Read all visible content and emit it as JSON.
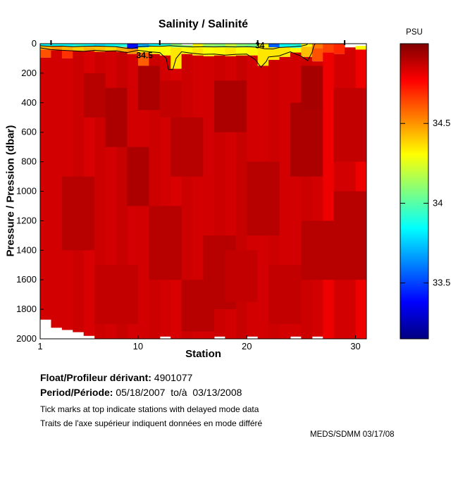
{
  "title": "Salinity / Salinité",
  "axes": {
    "xlabel": "Station",
    "ylabel": "Pressure / Pression (dbar)",
    "xticks": [
      1,
      10,
      20,
      30
    ],
    "yticks": [
      0,
      200,
      400,
      600,
      800,
      1000,
      1200,
      1400,
      1600,
      1800,
      2000
    ],
    "xlim": [
      1,
      31
    ],
    "ylim": [
      0,
      2000
    ]
  },
  "colorbar": {
    "label": "PSU",
    "ticks": [
      34.5,
      34,
      33.5
    ],
    "vmin": 33.15,
    "vmax": 35.0,
    "colormap": "jet"
  },
  "footer": {
    "float_label": "Float/Profileur dérivant:",
    "float_value": " 4901077",
    "period_label": "Period/Période:",
    "period_value": " 05/18/2007  to/à  03/13/2008",
    "note_en": "Tick marks at top indicate stations with delayed mode data",
    "note_fr": "Traits de l'axe supérieur indiquent données en mode différé",
    "credit": "MEDS/SDMM  03/17/08"
  },
  "chart_data": {
    "type": "heatmap",
    "title": "Salinity / Salinité",
    "xlabel": "Station",
    "ylabel": "Pressure / Pression (dbar)",
    "units": "PSU",
    "xlim": [
      1,
      31
    ],
    "ylim": [
      0,
      2000
    ],
    "colorbar": {
      "vmin": 33.15,
      "vmax": 35.0,
      "ticks": [
        34.5,
        34,
        33.5
      ],
      "colormap": "jet"
    },
    "delayed_mode_stations": [
      2,
      12,
      21,
      29
    ],
    "columns": [
      {
        "station": 1,
        "segments": [
          [
            0,
            15,
            33.85
          ],
          [
            15,
            40,
            34.45
          ],
          [
            40,
            95,
            34.62
          ],
          [
            95,
            1870,
            34.85
          ]
        ]
      },
      {
        "station": 2,
        "segments": [
          [
            0,
            15,
            33.85
          ],
          [
            15,
            45,
            34.5
          ],
          [
            45,
            1925,
            34.85
          ]
        ]
      },
      {
        "station": 3,
        "segments": [
          [
            0,
            18,
            33.85
          ],
          [
            18,
            45,
            34.45
          ],
          [
            45,
            100,
            34.68
          ],
          [
            100,
            1940,
            34.85
          ]
        ]
      },
      {
        "station": 4,
        "segments": [
          [
            0,
            18,
            33.9
          ],
          [
            18,
            50,
            34.4
          ],
          [
            50,
            1955,
            34.86
          ]
        ]
      },
      {
        "station": 5,
        "segments": [
          [
            0,
            20,
            33.85
          ],
          [
            20,
            50,
            34.45
          ],
          [
            50,
            1980,
            34.84
          ]
        ]
      },
      {
        "station": 6,
        "segments": [
          [
            0,
            18,
            33.8
          ],
          [
            18,
            55,
            34.42
          ],
          [
            55,
            2000,
            34.86
          ]
        ]
      },
      {
        "station": 7,
        "segments": [
          [
            0,
            18,
            33.85
          ],
          [
            18,
            50,
            34.38
          ],
          [
            50,
            2000,
            34.85
          ]
        ]
      },
      {
        "station": 8,
        "segments": [
          [
            0,
            22,
            33.9
          ],
          [
            22,
            55,
            34.45
          ],
          [
            55,
            2000,
            34.87
          ]
        ]
      },
      {
        "station": 9,
        "segments": [
          [
            0,
            35,
            33.4
          ],
          [
            35,
            70,
            34.5
          ],
          [
            70,
            2000,
            34.85
          ]
        ]
      },
      {
        "station": 10,
        "segments": [
          [
            0,
            25,
            33.7
          ],
          [
            25,
            60,
            34.3
          ],
          [
            60,
            150,
            34.6
          ],
          [
            150,
            2000,
            34.85
          ]
        ]
      },
      {
        "station": 11,
        "segments": [
          [
            0,
            15,
            33.85
          ],
          [
            15,
            70,
            34.3
          ],
          [
            70,
            2000,
            34.86
          ]
        ]
      },
      {
        "station": 12,
        "segments": [
          [
            0,
            18,
            33.9
          ],
          [
            18,
            80,
            34.3
          ],
          [
            80,
            1985,
            34.85
          ]
        ]
      },
      {
        "station": 13,
        "segments": [
          [
            0,
            25,
            34.1
          ],
          [
            25,
            170,
            34.35
          ],
          [
            170,
            2000,
            34.84
          ]
        ]
      },
      {
        "station": 14,
        "segments": [
          [
            10,
            25,
            34.1
          ],
          [
            25,
            70,
            34.3
          ],
          [
            70,
            2000,
            34.86
          ]
        ]
      },
      {
        "station": 15,
        "segments": [
          [
            0,
            30,
            34.3
          ],
          [
            30,
            80,
            34.35
          ],
          [
            80,
            2000,
            34.85
          ]
        ]
      },
      {
        "station": 16,
        "segments": [
          [
            0,
            25,
            34.12
          ],
          [
            25,
            85,
            34.3
          ],
          [
            85,
            2000,
            34.85
          ]
        ]
      },
      {
        "station": 17,
        "segments": [
          [
            0,
            25,
            34.1
          ],
          [
            25,
            80,
            34.32
          ],
          [
            80,
            1985,
            34.86
          ]
        ]
      },
      {
        "station": 18,
        "segments": [
          [
            0,
            28,
            34.2
          ],
          [
            28,
            85,
            34.35
          ],
          [
            85,
            2000,
            34.85
          ]
        ]
      },
      {
        "station": 19,
        "segments": [
          [
            0,
            25,
            34.1
          ],
          [
            25,
            80,
            34.3
          ],
          [
            80,
            2000,
            34.87
          ]
        ]
      },
      {
        "station": 20,
        "segments": [
          [
            0,
            25,
            34.05
          ],
          [
            25,
            80,
            34.32
          ],
          [
            80,
            1985,
            34.85
          ]
        ]
      },
      {
        "station": 21,
        "segments": [
          [
            0,
            22,
            34.3
          ],
          [
            22,
            150,
            34.35
          ],
          [
            150,
            2000,
            34.85
          ]
        ]
      },
      {
        "station": 22,
        "segments": [
          [
            0,
            25,
            33.55
          ],
          [
            25,
            110,
            34.35
          ],
          [
            110,
            2000,
            34.86
          ]
        ]
      },
      {
        "station": 23,
        "segments": [
          [
            0,
            22,
            33.85
          ],
          [
            22,
            90,
            34.35
          ],
          [
            90,
            2000,
            34.85
          ]
        ]
      },
      {
        "station": 24,
        "segments": [
          [
            0,
            28,
            33.9
          ],
          [
            28,
            60,
            34.3
          ],
          [
            60,
            1985,
            34.85
          ]
        ]
      },
      {
        "station": 25,
        "segments": [
          [
            0,
            20,
            34.3
          ],
          [
            20,
            90,
            34.42
          ],
          [
            90,
            2000,
            34.86
          ]
        ]
      },
      {
        "station": 26,
        "segments": [
          [
            0,
            30,
            34.55
          ],
          [
            30,
            120,
            34.62
          ],
          [
            120,
            1985,
            34.85
          ]
        ]
      },
      {
        "station": 27,
        "segments": [
          [
            0,
            60,
            34.65
          ],
          [
            60,
            2000,
            34.8
          ]
        ]
      },
      {
        "station": 28,
        "segments": [
          [
            0,
            70,
            34.7
          ],
          [
            70,
            2000,
            34.85
          ]
        ]
      },
      {
        "station": 29,
        "segments": [
          [
            25,
            2000,
            34.85
          ]
        ]
      },
      {
        "station": 30,
        "segments": [
          [
            15,
            40,
            34.3
          ],
          [
            40,
            2000,
            34.8
          ]
        ]
      }
    ],
    "deep_patches": [
      [
        3,
        5,
        900,
        1400,
        34.9
      ],
      [
        5,
        6,
        200,
        500,
        34.9
      ],
      [
        6,
        9,
        1500,
        1900,
        34.88
      ],
      [
        7,
        8,
        300,
        700,
        34.92
      ],
      [
        9,
        10,
        700,
        1100,
        34.92
      ],
      [
        10,
        11,
        150,
        450,
        34.92
      ],
      [
        11,
        13,
        1100,
        1600,
        34.9
      ],
      [
        12,
        13,
        250,
        500,
        34.88
      ],
      [
        13,
        15,
        500,
        900,
        34.9
      ],
      [
        14,
        16,
        1600,
        1950,
        34.9
      ],
      [
        16,
        18,
        1300,
        1800,
        34.9
      ],
      [
        17,
        19,
        250,
        600,
        34.92
      ],
      [
        18,
        20,
        1400,
        1750,
        34.88
      ],
      [
        20,
        22,
        800,
        1300,
        34.9
      ],
      [
        22,
        24,
        1500,
        1900,
        34.88
      ],
      [
        24,
        26,
        400,
        900,
        34.92
      ],
      [
        25,
        26,
        150,
        450,
        34.93
      ],
      [
        25,
        27,
        1200,
        1600,
        34.9
      ],
      [
        28,
        30,
        300,
        800,
        34.88
      ],
      [
        28,
        30,
        1000,
        1600,
        34.9
      ]
    ],
    "contours": [
      {
        "level": 34.5,
        "points": [
          [
            1,
            28
          ],
          [
            2,
            40
          ],
          [
            3,
            45
          ],
          [
            4,
            48
          ],
          [
            5,
            52
          ],
          [
            6,
            45
          ],
          [
            7,
            50
          ],
          [
            8,
            48
          ],
          [
            9,
            60
          ],
          [
            10,
            45
          ],
          [
            11,
            55
          ],
          [
            12,
            60
          ],
          [
            12.6,
            100
          ],
          [
            12.8,
            175
          ],
          [
            13.2,
            175
          ],
          [
            13.5,
            100
          ],
          [
            14,
            55
          ],
          [
            15,
            65
          ],
          [
            16,
            72
          ],
          [
            17,
            70
          ],
          [
            18,
            78
          ],
          [
            19,
            72
          ],
          [
            20,
            70
          ],
          [
            20.8,
            110
          ],
          [
            21.3,
            160
          ],
          [
            21.8,
            120
          ],
          [
            22,
            90
          ],
          [
            23,
            82
          ],
          [
            24,
            55
          ],
          [
            24.5,
            70
          ],
          [
            25,
            85
          ],
          [
            25.6,
            115
          ],
          [
            26,
            60
          ],
          [
            26.2,
            10
          ],
          [
            26.3,
            0
          ]
        ]
      },
      {
        "level": 34,
        "points": [
          [
            1,
            14
          ],
          [
            2,
            18
          ],
          [
            3,
            16
          ],
          [
            4,
            20
          ],
          [
            5,
            18
          ],
          [
            6,
            16
          ],
          [
            7,
            18
          ],
          [
            8,
            20
          ],
          [
            8.8,
            30
          ],
          [
            9.5,
            32
          ],
          [
            10,
            22
          ],
          [
            11,
            16
          ],
          [
            12,
            18
          ],
          [
            13,
            14
          ],
          [
            14,
            18
          ],
          [
            15,
            22
          ],
          [
            16,
            20
          ],
          [
            17,
            22
          ],
          [
            18,
            20
          ],
          [
            19,
            22
          ],
          [
            20,
            20
          ],
          [
            21,
            24
          ],
          [
            21.6,
            34
          ],
          [
            22.4,
            36
          ],
          [
            23,
            26
          ],
          [
            24,
            22
          ],
          [
            25,
            16
          ],
          [
            25.5,
            8
          ],
          [
            25.6,
            0
          ]
        ]
      }
    ],
    "contour_labels": [
      {
        "text": "34.5",
        "station": 10.6,
        "depth": 78
      },
      {
        "text": "34",
        "station": 21.2,
        "depth": 12
      }
    ]
  }
}
